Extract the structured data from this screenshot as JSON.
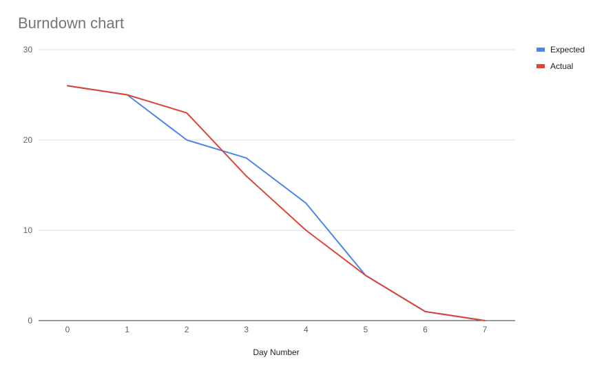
{
  "chart_data": {
    "type": "line",
    "title": "Burndown chart",
    "xlabel": "Day Number",
    "ylabel": "",
    "x": [
      0,
      1,
      2,
      3,
      4,
      5,
      6,
      7
    ],
    "xlim": [
      0,
      7
    ],
    "ylim": [
      0,
      30
    ],
    "y_ticks": [
      0,
      10,
      20,
      30
    ],
    "grid": true,
    "legend_position": "right",
    "series": [
      {
        "name": "Expected",
        "color": "#4a86e8",
        "values": [
          26,
          25,
          20,
          18,
          13,
          5,
          1,
          0
        ]
      },
      {
        "name": "Actual",
        "color": "#db4437",
        "values": [
          26,
          25,
          23,
          16,
          10,
          5,
          1,
          0
        ]
      }
    ]
  }
}
